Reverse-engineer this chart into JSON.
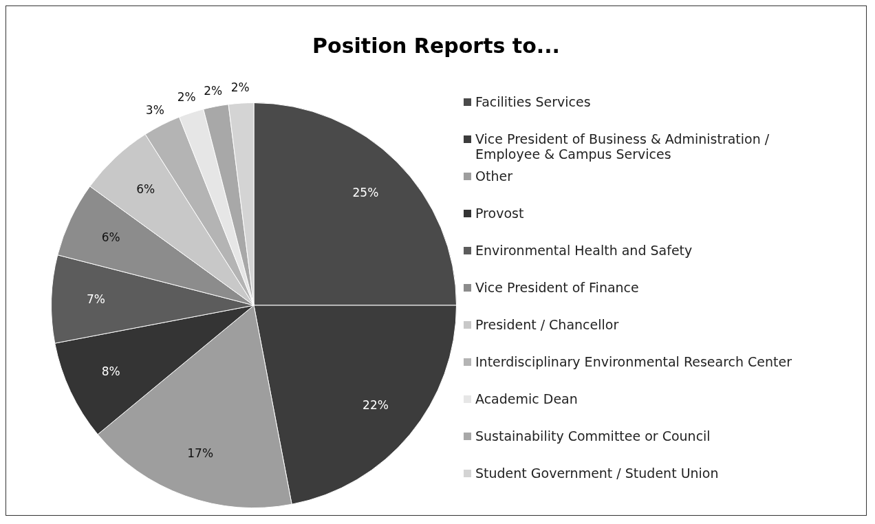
{
  "chart_data": {
    "type": "pie",
    "title": "Position Reports to...",
    "categories": [
      "Facilities Services",
      "Vice President of Business & Administration / Employee & Campus Services",
      "Other",
      "Provost",
      "Environmental Health and Safety",
      "Vice President of Finance",
      "President / Chancellor",
      "Interdisciplinary Environmental Research Center",
      "Academic Dean",
      "Sustainability Committee or Council",
      "Student Government / Student Union"
    ],
    "values": [
      25,
      22,
      17,
      8,
      7,
      6,
      6,
      3,
      2,
      2,
      2
    ],
    "colors": [
      "#4a4a4a",
      "#3c3c3c",
      "#9e9e9e",
      "#343434",
      "#5c5c5c",
      "#8c8c8c",
      "#c8c8c8",
      "#b4b4b4",
      "#e6e6e6",
      "#a8a8a8",
      "#d4d4d4"
    ],
    "value_labels": [
      "25%",
      "22%",
      "17%",
      "8%",
      "7%",
      "6%",
      "6%",
      "3%",
      "2%",
      "2%",
      "2%"
    ],
    "legend": "right"
  }
}
